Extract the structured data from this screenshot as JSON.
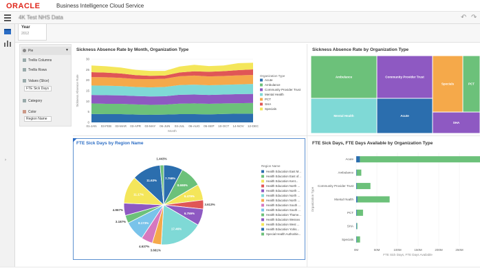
{
  "header": {
    "brand": "ORACLE",
    "product": "Business Intelligence Cloud Service",
    "project_title": "4K Test NHS Data",
    "undo_icon": "undo-icon",
    "redo_icon": "redo-icon"
  },
  "rail": {
    "icons": [
      "data-icon",
      "visualize-icon"
    ]
  },
  "filter": {
    "label": "Year",
    "value": "2012"
  },
  "grammar": {
    "viz_type": "Pie",
    "rows": [
      {
        "label": "Trellis Columns"
      },
      {
        "label": "Trellis Rows"
      },
      {
        "label": "Values (Slice)",
        "field": "FTE Sick Days"
      },
      {
        "label": "Category"
      },
      {
        "label": "Color",
        "field": "Region Name"
      }
    ]
  },
  "colors": {
    "green": "#6cc17a",
    "purple": "#8e59c2",
    "teal_blue": "#2b6eae",
    "light_teal": "#7fd9d6",
    "orange": "#f5a94a",
    "red": "#e05656",
    "yellow": "#f4e65a",
    "pink": "#d678bf",
    "light_blue": "#79c3ea",
    "accent": "#2a6cc4"
  },
  "chart_data": [
    {
      "type": "area",
      "title": "Sickness Absence Rate by Month, Organization Type",
      "xlabel": "Month",
      "ylabel": "Sickness Absence Rate",
      "ylim": [
        0,
        30
      ],
      "yticks": [
        "0",
        "5",
        "10",
        "15",
        "20",
        "25",
        "30"
      ],
      "categories": [
        "01-JAN",
        "01-FEB",
        "01-MAR",
        "01-APR",
        "01-MAY",
        "01-JUN",
        "01-JUL",
        "01-AUG",
        "01-SEP",
        "01-OCT",
        "01-NOV",
        "01-DEC"
      ],
      "category_labels": [
        "01-JAN",
        "03-FEB",
        "03-MAR",
        "03-APR",
        "03-MAY",
        "06-JUN",
        "03-JUL",
        "06-AUG",
        "05-SEP",
        "10-OCT",
        "14-NOV",
        "12-DEC"
      ],
      "legend_title": "Organization Type",
      "series": [
        {
          "name": "Acute",
          "color": "#2b6eae",
          "values": [
            4.0,
            3.9,
            3.9,
            3.7,
            3.6,
            3.7,
            3.9,
            3.9,
            3.8,
            4.0,
            4.1,
            4.1
          ]
        },
        {
          "name": "Ambulance",
          "color": "#6cc17a",
          "values": [
            5.0,
            4.9,
            4.9,
            4.8,
            4.7,
            4.7,
            5.0,
            5.1,
            5.0,
            5.0,
            5.0,
            5.1
          ]
        },
        {
          "name": "Community Provider Trust",
          "color": "#8e59c2",
          "values": [
            4.0,
            4.1,
            4.0,
            4.0,
            4.0,
            4.0,
            4.2,
            4.2,
            4.2,
            4.2,
            4.3,
            4.3
          ]
        },
        {
          "name": "Mental Health",
          "color": "#7fd9d6",
          "values": [
            4.5,
            4.5,
            4.4,
            4.3,
            4.3,
            4.4,
            4.6,
            4.7,
            4.6,
            4.6,
            4.6,
            4.7
          ]
        },
        {
          "name": "PCT",
          "color": "#f5a94a",
          "values": [
            4.0,
            4.0,
            3.9,
            3.8,
            3.9,
            3.9,
            4.2,
            4.3,
            4.2,
            4.2,
            4.3,
            4.3
          ]
        },
        {
          "name": "SHA",
          "color": "#e05656",
          "values": [
            2.3,
            2.2,
            2.1,
            1.8,
            1.6,
            1.5,
            1.8,
            2.0,
            2.2,
            2.3,
            2.5,
            2.6
          ]
        },
        {
          "name": "Specials",
          "color": "#f4e65a",
          "values": [
            3.2,
            3.0,
            2.8,
            2.5,
            2.3,
            2.2,
            2.8,
            3.1,
            2.7,
            2.7,
            3.3,
            3.2
          ]
        }
      ]
    },
    {
      "type": "treemap",
      "title": "Sickness Absence Rate by Organization Type",
      "items": [
        {
          "name": "Ambulance",
          "color": "#6cc17a"
        },
        {
          "name": "Community Provider Trust",
          "color": "#8e59c2"
        },
        {
          "name": "Specials",
          "color": "#f5a94a"
        },
        {
          "name": "PCT",
          "color": "#6cc17a"
        },
        {
          "name": "Mental Health",
          "color": "#7fd9d6"
        },
        {
          "name": "Acute",
          "color": "#2b6eae"
        },
        {
          "name": "SHA",
          "color": "#8e59c2"
        }
      ]
    },
    {
      "type": "pie",
      "title": "FTE Sick Days by Region Name",
      "legend_title": "Region Name",
      "slices": [
        {
          "name": "Health Education East M...",
          "value": 7.798,
          "label": "7.798%",
          "color": "#2b6eae"
        },
        {
          "name": "Health Education East of...",
          "value": 8.698,
          "label": "8.698%",
          "color": "#6cc17a"
        },
        {
          "name": "Health Education Kent...",
          "value": 6.479,
          "label": "6.479%",
          "color": "#f4e65a"
        },
        {
          "name": "Health Education North ...",
          "value": 3.613,
          "label": "3.613%",
          "color": "#e05656"
        },
        {
          "name": "Health Education North ...",
          "value": 6.755,
          "label": "6.755%",
          "color": "#8e59c2"
        },
        {
          "name": "Health Education North ...",
          "value": 17.46,
          "label": "17.46%",
          "color": "#7fd9d6"
        },
        {
          "name": "Health Education North ...",
          "value": 3.661,
          "label": "3.661%",
          "color": "#f5a94a"
        },
        {
          "name": "Health Education South ...",
          "value": 4.637,
          "label": "4.637%",
          "color": "#d678bf"
        },
        {
          "name": "Health Education South ...",
          "value": 8.173,
          "label": "8.173%",
          "color": "#79c3ea"
        },
        {
          "name": "Health Education Thame...",
          "value": 3.187,
          "label": "3.187%",
          "color": "#6cc17a"
        },
        {
          "name": "Health Education Wessex",
          "value": 4.967,
          "label": "4.967%",
          "color": "#8e59c2"
        },
        {
          "name": "Health Education West ...",
          "value": 11.17,
          "label": "11.17%",
          "color": "#f4e65a"
        },
        {
          "name": "Health Education Yorks...",
          "value": 11.63,
          "label": "11.63%",
          "color": "#2b6eae"
        },
        {
          "name": "Special Health Authoritie...",
          "value": 1.443,
          "label": "1.443%",
          "color": "#6cc17a"
        }
      ]
    },
    {
      "type": "bar",
      "orientation": "horizontal",
      "title": "FTE Sick Days, FTE Days Available by Organization Type",
      "ylabel": "Organization Type",
      "xlabel": "FTE Sick Days, FTE Days Available",
      "xlim": [
        0,
        300
      ],
      "xticks": [
        "0M",
        "50M",
        "100M",
        "150M",
        "200M",
        "250M"
      ],
      "categories": [
        "Acute",
        "Ambulance",
        "Community Provider Trust",
        "Mental Health",
        "PCT",
        "SHA",
        "Specials"
      ],
      "series": [
        {
          "name": "FTE Sick Days",
          "color": "#2b6eae",
          "values": [
            9,
            1,
            1.5,
            3,
            1.5,
            0.2,
            0.5
          ]
        },
        {
          "name": "FTE Days Available",
          "color": "#6cc17a",
          "values": [
            300,
            11,
            33,
            78,
            15,
            1.5,
            8
          ]
        }
      ]
    }
  ]
}
